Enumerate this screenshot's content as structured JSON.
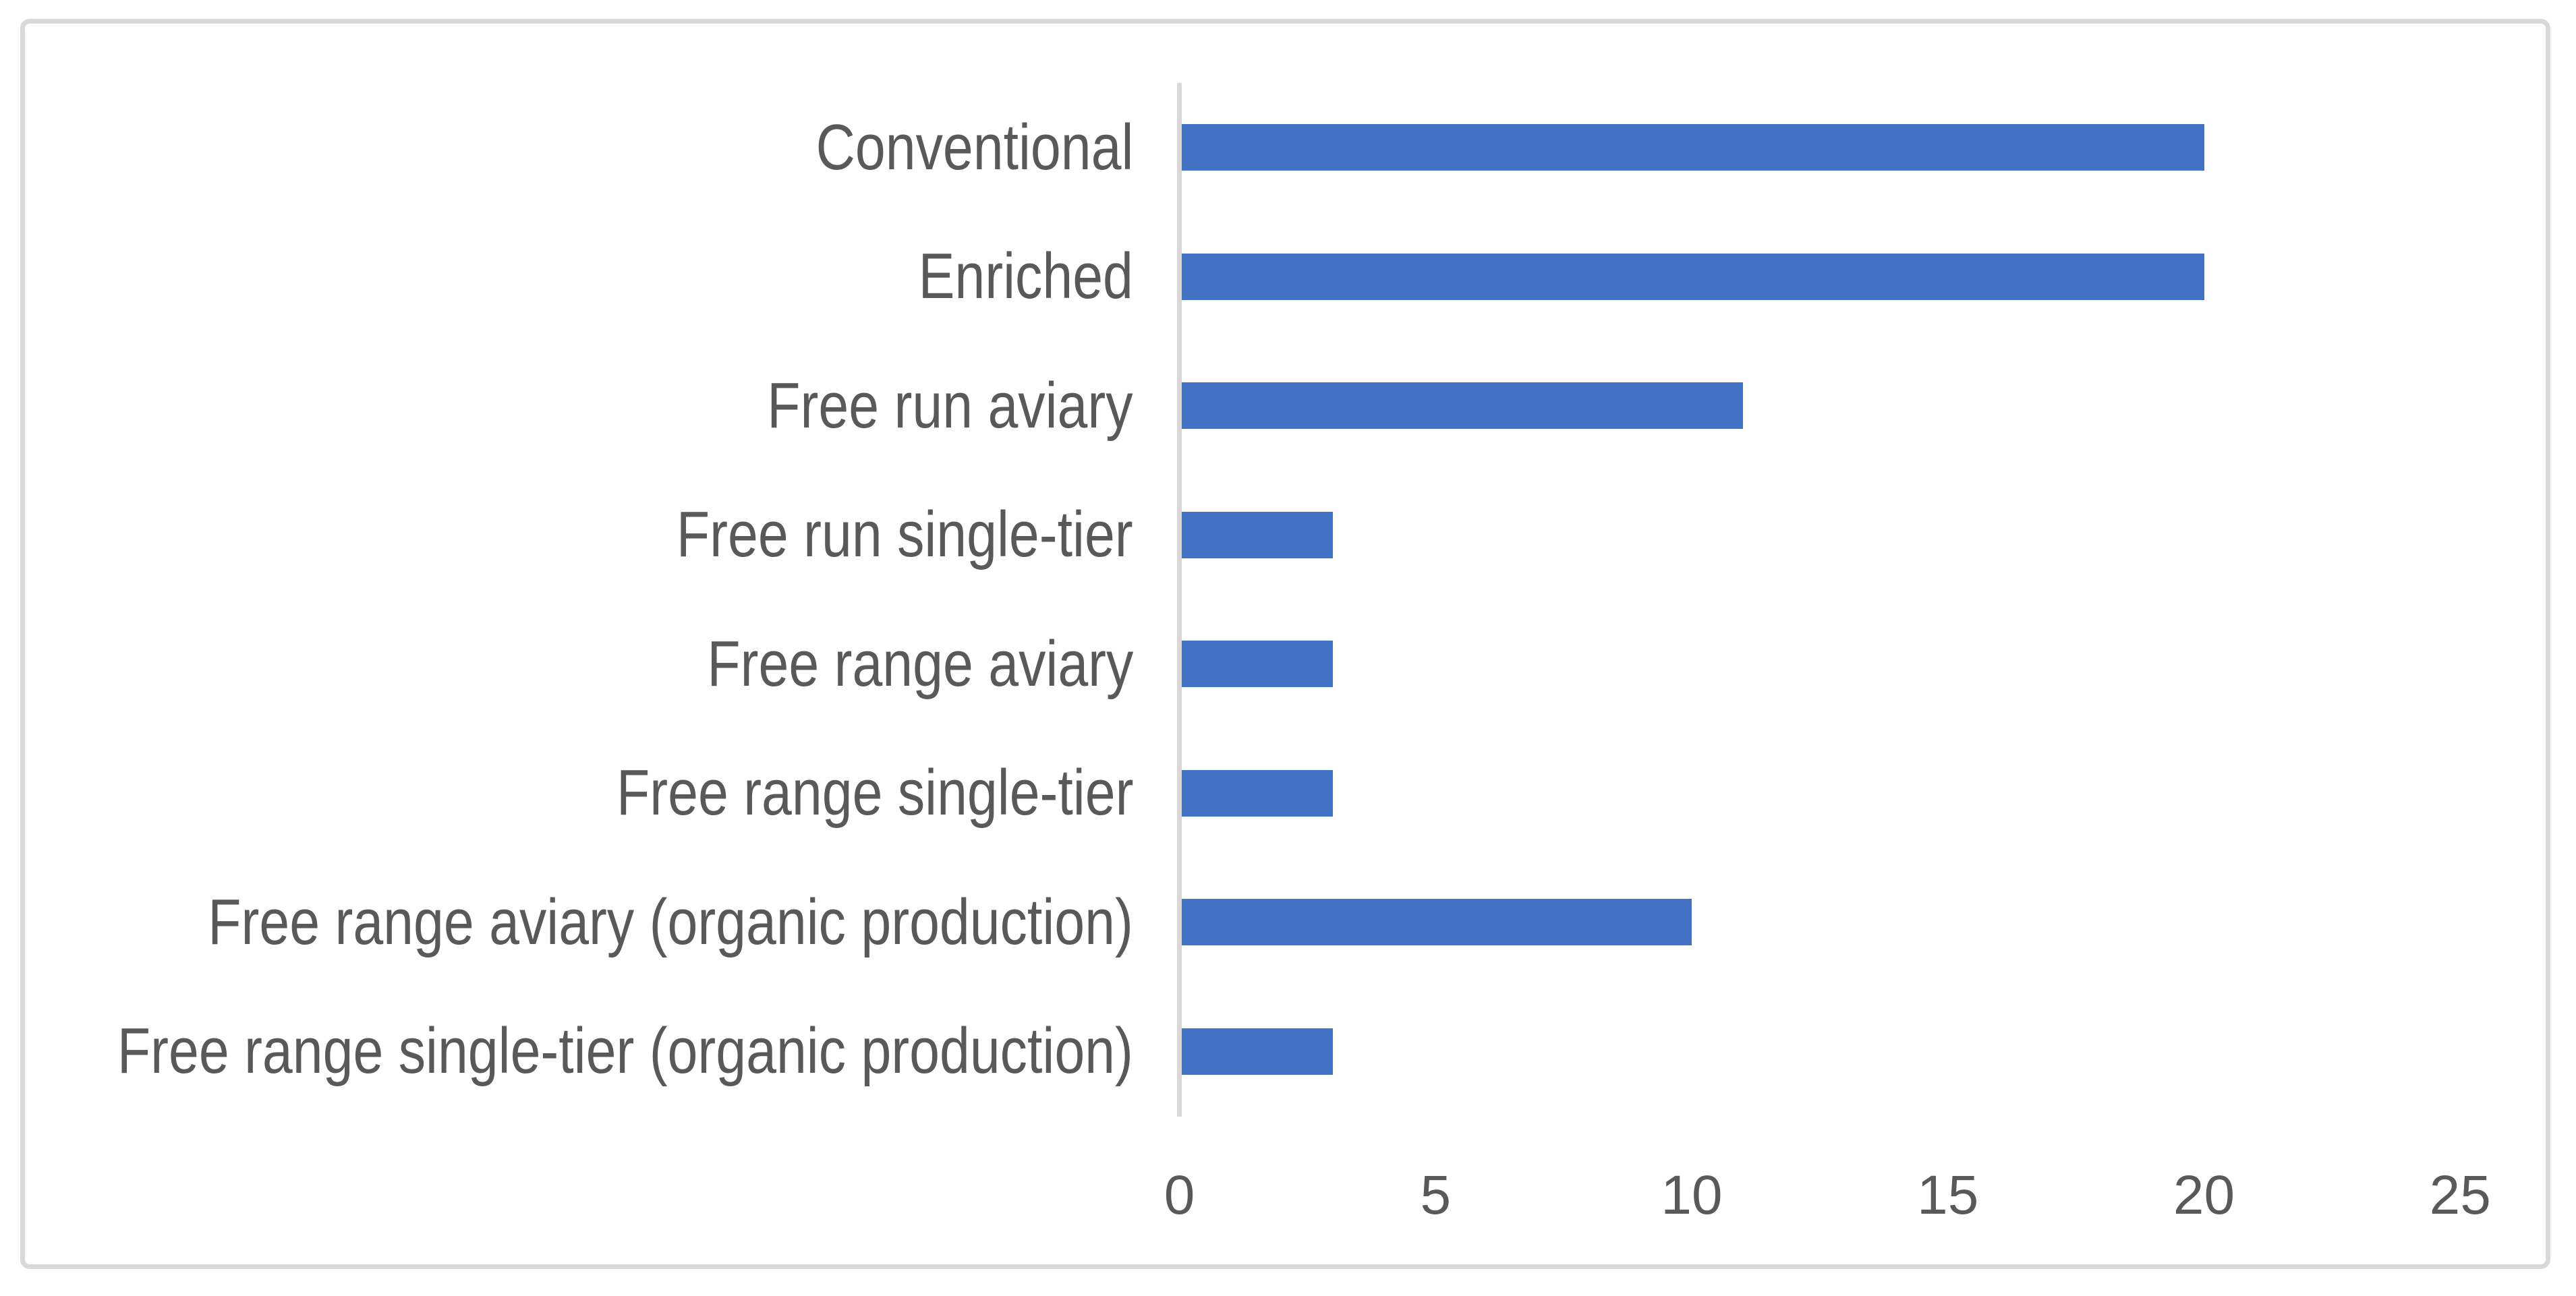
{
  "chart_data": {
    "type": "bar",
    "orientation": "horizontal",
    "title": "",
    "xlabel": "",
    "ylabel": "",
    "categories": [
      "Conventional",
      "Enriched",
      "Free run aviary",
      "Free run single-tier",
      "Free range aviary",
      "Free range single-tier",
      "Free range aviary (organic production)",
      "Free range single-tier (organic production)"
    ],
    "values": [
      20,
      20,
      11,
      3,
      3,
      3,
      10,
      3
    ],
    "xlim": [
      0,
      25
    ],
    "xtick_labels": [
      "0",
      "5",
      "10",
      "15",
      "20",
      "25"
    ],
    "xtick_values": [
      0,
      5,
      10,
      15,
      20,
      25
    ],
    "grid": false,
    "legend": false,
    "colors": {
      "bar": "#4472C4",
      "axis_line": "#D9D9D9",
      "frame_border": "#D9D9D9",
      "text": "#595959",
      "background": "#FFFFFF"
    }
  }
}
